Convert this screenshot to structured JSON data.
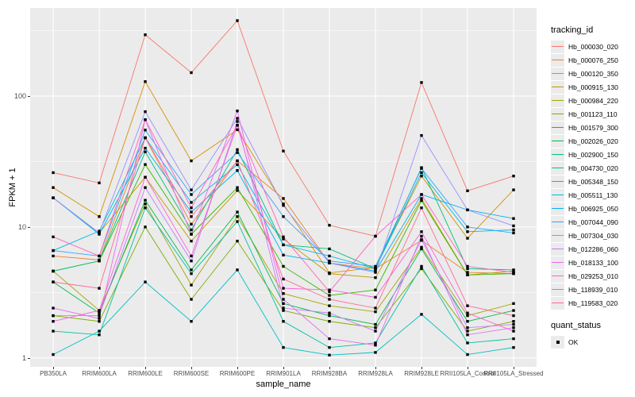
{
  "figure": {
    "y_axis": {
      "title": "FPKM + 1"
    },
    "x_axis": {
      "title": "sample_name"
    },
    "legend": {
      "tracking_title": "tracking_id",
      "quant_title": "quant_status",
      "quant_ok_label": "OK"
    }
  },
  "colors": {
    "panel_background": "#EBEBEB",
    "gridline": "#FFFFFF",
    "axis_text": "#4D4D4D",
    "point": "#000000"
  },
  "chart_data": {
    "type": "line",
    "title": "",
    "xlabel": "sample_name",
    "ylabel": "FPKM + 1",
    "y_scale": "log10",
    "y_ticks": [
      1,
      10,
      100
    ],
    "y_minor_ticks": [
      3.162,
      31.62,
      316.2
    ],
    "ylim": [
      0.85,
      470
    ],
    "grid": true,
    "legend_position": "right",
    "point_marker": {
      "shape": "square",
      "color": "#000000",
      "status_label": "OK"
    },
    "categories": [
      "PB350LA",
      "RRIM600LA",
      "RRIM600LE",
      "RRIM600SE",
      "RRIM600PE",
      "RRIM901LA",
      "RRIM928BA",
      "RRIM928LA",
      "RRIM928LE",
      "RRII105LA_Control",
      "RRII105LA_Stressed"
    ],
    "series": [
      {
        "name": "Hb_000030_020",
        "color": "#F8766D",
        "values": [
          26,
          21.7,
          294,
          151,
          377,
          38,
          10.3,
          8.5,
          127,
          18.9,
          24.5
        ]
      },
      {
        "name": "Hb_000076_250",
        "color": "#EA8331",
        "values": [
          6.0,
          5.6,
          48,
          10.5,
          32,
          16.5,
          5.3,
          4.8,
          7.9,
          4.5,
          4.4
        ]
      },
      {
        "name": "Hb_000120_350",
        "color": "#D89000",
        "values": [
          20,
          12,
          129,
          32,
          55.3,
          15,
          4.46,
          4.9,
          24.5,
          8.2,
          19.2
        ]
      },
      {
        "name": "Hb_000915_130",
        "color": "#C09B00",
        "values": [
          16.7,
          9.0,
          24,
          7.8,
          19,
          8.1,
          4.4,
          4.1,
          16.5,
          4.3,
          4.6
        ]
      },
      {
        "name": "Hb_000984_220",
        "color": "#A3A500",
        "values": [
          4.6,
          2.3,
          15,
          3.6,
          12,
          3.1,
          2.5,
          2.25,
          7.0,
          2.1,
          2.6
        ]
      },
      {
        "name": "Hb_001123_110",
        "color": "#7CAE00",
        "values": [
          2.1,
          1.9,
          10,
          2.8,
          7.8,
          2.3,
          1.9,
          1.7,
          4.8,
          1.6,
          1.9
        ]
      },
      {
        "name": "Hb_001579_300",
        "color": "#39B600",
        "values": [
          4.6,
          5.5,
          30,
          8.8,
          20,
          5.0,
          3.0,
          3.3,
          15.9,
          4.3,
          4.4
        ]
      },
      {
        "name": "Hb_002026_020",
        "color": "#00BB4E",
        "values": [
          3.8,
          2.2,
          16,
          4.7,
          13,
          2.6,
          2.1,
          1.8,
          6.8,
          1.9,
          2.3
        ]
      },
      {
        "name": "Hb_002900_150",
        "color": "#00BF7D",
        "values": [
          4.6,
          5.5,
          37.5,
          9.5,
          39,
          7.3,
          6.8,
          4.8,
          28.4,
          4.8,
          4.7
        ]
      },
      {
        "name": "Hb_004730_020",
        "color": "#00C1A3",
        "values": [
          1.6,
          1.5,
          14,
          4.4,
          11,
          1.9,
          1.2,
          1.3,
          5.0,
          1.3,
          1.4
        ]
      },
      {
        "name": "Hb_005348_150",
        "color": "#00BFC4",
        "values": [
          1.06,
          1.6,
          3.8,
          1.9,
          4.7,
          1.2,
          1.05,
          1.1,
          2.15,
          1.06,
          1.2
        ]
      },
      {
        "name": "Hb_005511_130",
        "color": "#00BAE0",
        "values": [
          6.6,
          9.3,
          48,
          15.4,
          29.9,
          7.3,
          6.0,
          4.8,
          26,
          9.2,
          9.5
        ]
      },
      {
        "name": "Hb_006925_050",
        "color": "#00B0F6",
        "values": [
          16.7,
          8.8,
          40,
          13,
          27,
          6.1,
          5.3,
          4.6,
          17.7,
          13.5,
          11.6
        ]
      },
      {
        "name": "Hb_007044_090",
        "color": "#35A2FF",
        "values": [
          6.6,
          6.0,
          55,
          17.7,
          37,
          12,
          5.5,
          5.0,
          28,
          10,
          9.0
        ]
      },
      {
        "name": "Hb_007304_030",
        "color": "#9590FF",
        "values": [
          16.7,
          9.0,
          76,
          19.2,
          67.6,
          14.6,
          5.3,
          4.5,
          50,
          13.5,
          10.2
        ]
      },
      {
        "name": "Hb_012286_060",
        "color": "#C77CFF",
        "values": [
          2.1,
          2.1,
          20,
          5.5,
          64,
          2.4,
          2.2,
          1.6,
          8.0,
          1.7,
          1.8
        ]
      },
      {
        "name": "Hb_018133_100",
        "color": "#E76BF3",
        "values": [
          2.4,
          2.0,
          66,
          8.8,
          77,
          2.8,
          1.4,
          1.25,
          8.5,
          1.5,
          1.7
        ]
      },
      {
        "name": "Hb_029253_010",
        "color": "#FA62DB",
        "values": [
          1.9,
          2.3,
          24,
          6.0,
          59.8,
          3.4,
          3.3,
          2.9,
          9.2,
          2.2,
          1.6
        ]
      },
      {
        "name": "Hb_118939_010",
        "color": "#FF62BC",
        "values": [
          8.4,
          6.0,
          66,
          14,
          59.8,
          8.4,
          3.2,
          8.5,
          17.7,
          5.0,
          4.5
        ]
      },
      {
        "name": "Hb_119583_020",
        "color": "#FF6A98",
        "values": [
          3.8,
          3.4,
          48,
          12,
          32,
          4.0,
          2.8,
          2.4,
          14,
          2.5,
          2.1
        ]
      }
    ]
  }
}
